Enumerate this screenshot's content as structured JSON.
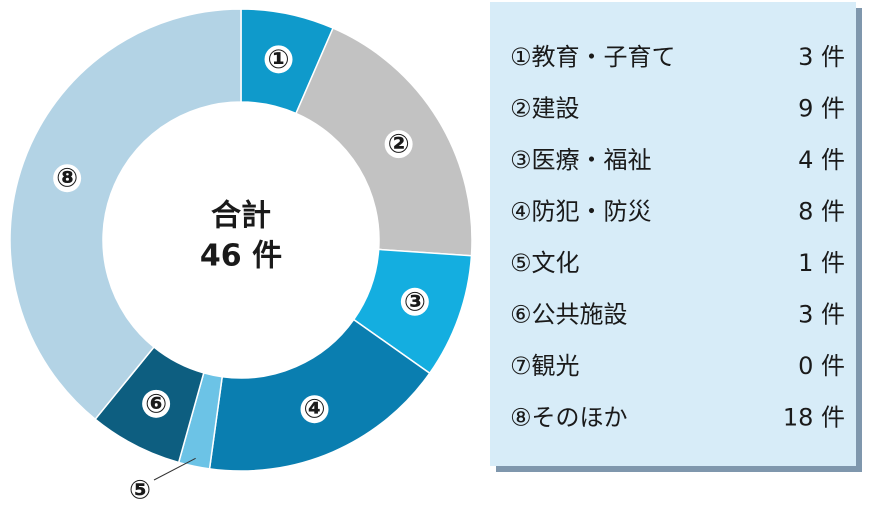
{
  "chart_data": {
    "type": "donut",
    "categories": [
      "①教育・子育て",
      "②建設",
      "③医療・福祉",
      "④防犯・防災",
      "⑤文化",
      "⑥公共施設",
      "⑦観光",
      "⑧そのほか"
    ],
    "values": [
      3,
      9,
      4,
      8,
      1,
      3,
      0,
      18
    ],
    "value_labels": [
      "3 件",
      "9 件",
      "4 件",
      "8 件",
      "1 件",
      "3 件",
      "0 件",
      "18 件"
    ],
    "slice_labels": [
      "①",
      "②",
      "③",
      "④",
      "⑤",
      "⑥",
      null,
      "⑧"
    ],
    "colors": [
      "#0f9acb",
      "#c2c2c2",
      "#14aee0",
      "#0a7eb0",
      "#6cc3e6",
      "#0d5e80",
      "#9fc9df",
      "#b3d3e5"
    ],
    "center_text": [
      "合計",
      "46 件"
    ]
  }
}
